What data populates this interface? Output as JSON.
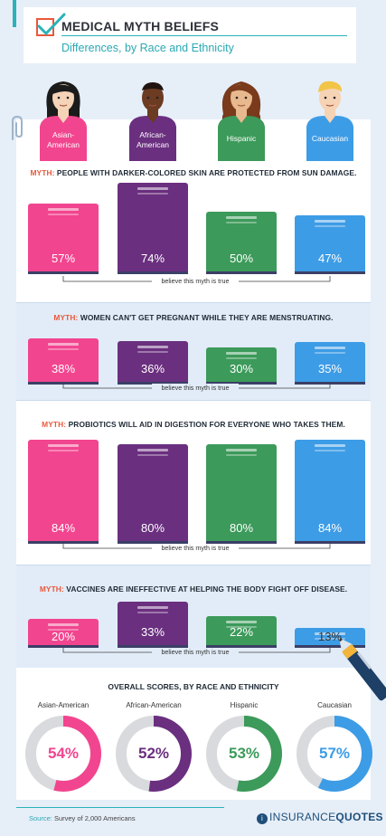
{
  "header": {
    "title": "MEDICAL MYTH BELIEFS",
    "subtitle": "Differences, by Race and Ethnicity"
  },
  "groups": [
    {
      "label": "Asian-American",
      "label_lines": [
        "Asian-",
        "American"
      ],
      "color": "#f2458f"
    },
    {
      "label": "African-American",
      "label_lines": [
        "African-",
        "American"
      ],
      "color": "#6a2f7f"
    },
    {
      "label": "Hispanic",
      "label_lines": [
        "Hispanic"
      ],
      "color": "#3c9a5a"
    },
    {
      "label": "Caucasian",
      "label_lines": [
        "Caucasian"
      ],
      "color": "#3d9ce6"
    }
  ],
  "bracket_label": "believe this myth is true",
  "myths": [
    {
      "keyword": "MYTH:",
      "text": " PEOPLE WITH DARKER-COLORED SKIN ARE PROTECTED FROM SUN DAMAGE.",
      "values_text": [
        "57%",
        "74%",
        "50%",
        "47%"
      ]
    },
    {
      "keyword": "MYTH:",
      "text": " WOMEN CAN'T GET PREGNANT WHILE THEY ARE MENSTRUATING.",
      "values_text": [
        "38%",
        "36%",
        "30%",
        "35%"
      ]
    },
    {
      "keyword": "MYTH:",
      "text": " PROBIOTICS WILL AID IN DIGESTION FOR EVERYONE WHO TAKES THEM.",
      "values_text": [
        "84%",
        "80%",
        "80%",
        "84%"
      ]
    },
    {
      "keyword": "MYTH:",
      "text": " VACCINES ARE INEFFECTIVE AT HELPING THE BODY FIGHT OFF DISEASE.",
      "values_text": [
        "20%",
        "33%",
        "22%",
        "13%"
      ]
    }
  ],
  "overall": {
    "title": "OVERALL SCORES, BY RACE AND ETHNICITY",
    "values_text": [
      "54%",
      "52%",
      "53%",
      "57%"
    ]
  },
  "footer": {
    "source_key": "Source:",
    "source_text": " Survey of 2,000 Americans",
    "brand_icon": "i",
    "brand_light": "INSURANCE",
    "brand_bold": "QUOTES"
  },
  "chart_data": [
    {
      "type": "bar",
      "title": "MYTH: PEOPLE WITH DARKER-COLORED SKIN ARE PROTECTED FROM SUN DAMAGE.",
      "categories": [
        "Asian-American",
        "African-American",
        "Hispanic",
        "Caucasian"
      ],
      "values": [
        57,
        74,
        50,
        47
      ],
      "xlabel": "believe this myth is true"
    },
    {
      "type": "bar",
      "title": "MYTH: WOMEN CAN'T GET PREGNANT WHILE THEY ARE MENSTRUATING.",
      "categories": [
        "Asian-American",
        "African-American",
        "Hispanic",
        "Caucasian"
      ],
      "values": [
        38,
        36,
        30,
        35
      ],
      "xlabel": "believe this myth is true"
    },
    {
      "type": "bar",
      "title": "MYTH: PROBIOTICS WILL AID IN DIGESTION FOR EVERYONE WHO TAKES THEM.",
      "categories": [
        "Asian-American",
        "African-American",
        "Hispanic",
        "Caucasian"
      ],
      "values": [
        84,
        80,
        80,
        84
      ],
      "xlabel": "believe this myth is true"
    },
    {
      "type": "bar",
      "title": "MYTH: VACCINES ARE INEFFECTIVE AT HELPING THE BODY FIGHT OFF DISEASE.",
      "categories": [
        "Asian-American",
        "African-American",
        "Hispanic",
        "Caucasian"
      ],
      "values": [
        20,
        33,
        22,
        13
      ],
      "xlabel": "believe this myth is true"
    },
    {
      "type": "pie",
      "title": "OVERALL SCORES, BY RACE AND ETHNICITY",
      "categories": [
        "Asian-American",
        "African-American",
        "Hispanic",
        "Caucasian"
      ],
      "values": [
        54,
        52,
        53,
        57
      ]
    }
  ]
}
